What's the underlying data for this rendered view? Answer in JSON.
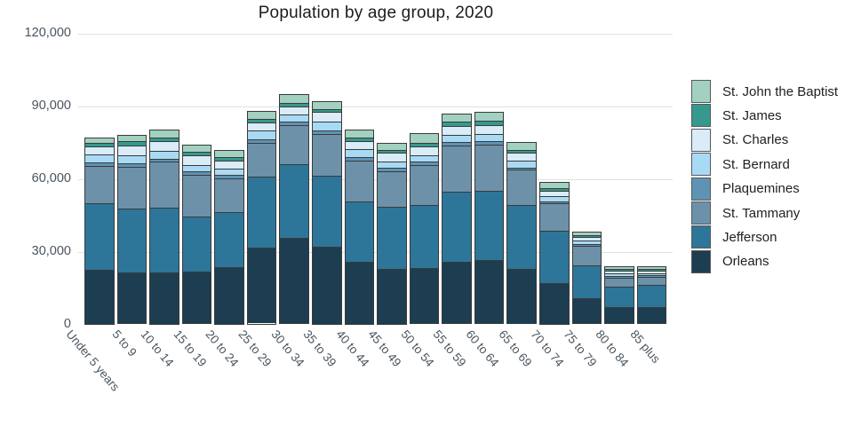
{
  "title": "Population by age group, 2020",
  "chart_data": {
    "type": "bar",
    "stacked": true,
    "title": "Population by age group, 2020",
    "xlabel": "",
    "ylabel": "",
    "ylim": [
      0,
      120000
    ],
    "grid": "horizontal",
    "legend_position": "right",
    "legend_order_note": "legend listed top segment first; bars stack Orleans at bottom",
    "yticks": [
      {
        "value": 0,
        "label": "0"
      },
      {
        "value": 30000,
        "label": "30,000"
      },
      {
        "value": 60000,
        "label": "60,000"
      },
      {
        "value": 90000,
        "label": "90,000"
      },
      {
        "value": 120000,
        "label": "120,000"
      }
    ],
    "categories": [
      "Under 5 years",
      "5 to 9",
      "10 to 14",
      "15 to 19",
      "20 to 24",
      "25 to 29",
      "30 to 34",
      "35 to 39",
      "40 to 44",
      "45 to 49",
      "50 to 54",
      "55 to 59",
      "60 to 64",
      "65 to 69",
      "70 to 74",
      "75 to 79",
      "80 to 84",
      "85 plus"
    ],
    "series": [
      {
        "name": "Orleans",
        "color": "#1d3d51",
        "values": [
          22300,
          21200,
          21200,
          21500,
          23300,
          31500,
          35500,
          32000,
          25500,
          22700,
          23100,
          25500,
          26400,
          22700,
          16900,
          10800,
          6900,
          7100
        ]
      },
      {
        "name": "Jefferson",
        "color": "#2d7699",
        "values": [
          27800,
          26700,
          26900,
          23100,
          23200,
          29500,
          30600,
          29600,
          25200,
          25800,
          26100,
          29400,
          28900,
          26500,
          21900,
          13700,
          8700,
          9300
        ]
      },
      {
        "name": "St. Tammany",
        "color": "#6d91a9",
        "values": [
          15500,
          17400,
          19200,
          17400,
          13900,
          14000,
          16200,
          17300,
          17100,
          14900,
          16700,
          19100,
          19100,
          14900,
          11300,
          8200,
          3900,
          3300
        ]
      },
      {
        "name": "Plaquemines",
        "color": "#5e93b4",
        "values": [
          1500,
          1200,
          1200,
          1200,
          1500,
          1600,
          1600,
          1300,
          1500,
          1300,
          1400,
          1300,
          1400,
          900,
          800,
          700,
          700,
          700
        ]
      },
      {
        "name": "St. Bernard",
        "color": "#a9daf5",
        "values": [
          3300,
          3300,
          3400,
          2700,
          2700,
          3600,
          2900,
          3900,
          3100,
          2800,
          2800,
          3100,
          3100,
          2700,
          2200,
          1500,
          1000,
          850
        ]
      },
      {
        "name": "St. Charles",
        "color": "#d9ecf8",
        "values": [
          3500,
          4400,
          3900,
          4200,
          3200,
          3300,
          3200,
          3900,
          3600,
          3600,
          3700,
          3700,
          3700,
          3400,
          2200,
          1400,
          1200,
          1100
        ]
      },
      {
        "name": "St. James",
        "color": "#36998d",
        "values": [
          1300,
          1600,
          1600,
          1500,
          1400,
          1600,
          1700,
          1200,
          1500,
          1200,
          1500,
          1700,
          1600,
          1200,
          1200,
          700,
          700,
          700
        ]
      },
      {
        "name": "St. John the Baptist",
        "color": "#a2d1c0",
        "values": [
          2000,
          2200,
          3100,
          2600,
          2700,
          2900,
          3200,
          2800,
          2800,
          2500,
          3400,
          3200,
          3300,
          3000,
          2400,
          1100,
          900,
          850
        ]
      }
    ],
    "chrome_colors": {
      "grid": "#e0e0e0",
      "tick_label": "#4a545e",
      "title": "#1c1c1c",
      "bar_outline": "#3a3a3a",
      "legend_text": "#212121",
      "background": "#ffffff"
    }
  }
}
